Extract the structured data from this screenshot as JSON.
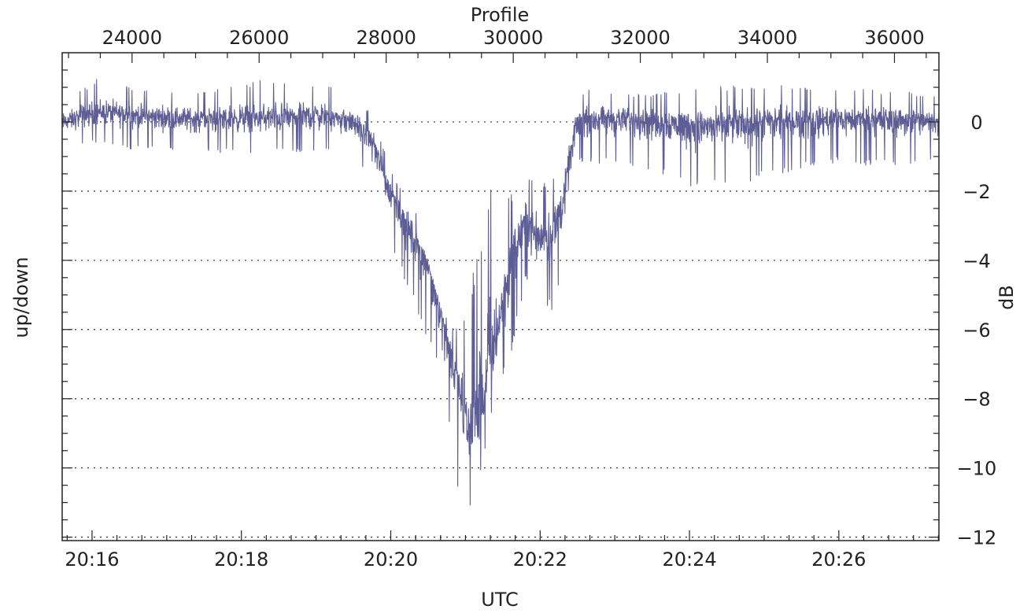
{
  "chart_data": {
    "type": "line",
    "title": "",
    "x_top_label": "Profile",
    "x_bottom_label": "UTC",
    "y_left_label": "up/down",
    "y_right_label": "dB",
    "x_top_ticks": [
      "24000",
      "26000",
      "28000",
      "30000",
      "32000",
      "34000",
      "36000"
    ],
    "x_top_tick_values": [
      24000,
      26000,
      28000,
      30000,
      32000,
      34000,
      36000
    ],
    "x_top_range": [
      22900,
      36700
    ],
    "x_bottom_ticks": [
      "20:16",
      "20:18",
      "20:20",
      "20:22",
      "20:24",
      "20:26"
    ],
    "x_bottom_tick_values_min": [
      16,
      18,
      20,
      22,
      24,
      26
    ],
    "x_bottom_range_min": [
      15.6,
      27.34
    ],
    "y_ticks": [
      "0",
      "−2",
      "−4",
      "−6",
      "−8",
      "−10",
      "−12"
    ],
    "y_tick_values": [
      0,
      -2,
      -4,
      -6,
      -8,
      -10,
      -12
    ],
    "y_range": [
      -12.1,
      2.0
    ],
    "grid": "dotted horizontal at major y ticks",
    "series": [
      {
        "color": "#5e5e96",
        "envelope_x_profile": [
          22900,
          23500,
          24000,
          25000,
          26000,
          27000,
          27500,
          27800,
          28000,
          28200,
          28400,
          28600,
          28800,
          29000,
          29200,
          29400,
          29600,
          29800,
          30000,
          30200,
          30400,
          30600,
          30800,
          30900,
          31000,
          31200,
          32000,
          33000,
          34000,
          35000,
          36000,
          36700
        ],
        "envelope_center_db": [
          0.0,
          0.3,
          0.2,
          0.1,
          0.1,
          0.2,
          0.0,
          -0.6,
          -1.8,
          -2.4,
          -3.3,
          -3.8,
          -5.0,
          -6.5,
          -8.2,
          -9.0,
          -7.5,
          -5.5,
          -3.8,
          -2.8,
          -3.3,
          -3.2,
          -2.2,
          -1.0,
          0.0,
          0.1,
          0.1,
          -0.1,
          0.0,
          0.1,
          0.1,
          0.0
        ],
        "envelope_min_db": [
          -0.8,
          -0.6,
          -0.8,
          -0.9,
          -0.9,
          -0.9,
          -1.0,
          -1.8,
          -3.2,
          -4.2,
          -5.0,
          -6.1,
          -7.0,
          -8.8,
          -11.6,
          -11.0,
          -9.0,
          -7.8,
          -6.5,
          -4.5,
          -5.2,
          -5.5,
          -4.2,
          -2.2,
          -1.2,
          -1.2,
          -1.3,
          -2.0,
          -1.6,
          -1.2,
          -1.3,
          -1.2
        ],
        "envelope_max_db": [
          0.6,
          1.3,
          1.0,
          0.9,
          1.2,
          1.1,
          0.7,
          0.2,
          -1.0,
          -1.9,
          -2.0,
          -3.5,
          -4.6,
          -6.0,
          -5.8,
          -4.0,
          -1.9,
          -2.1,
          -2.0,
          -1.6,
          -1.7,
          -1.6,
          -0.8,
          0.3,
          0.7,
          1.0,
          0.8,
          1.0,
          1.1,
          1.0,
          0.9,
          0.8
        ]
      }
    ]
  }
}
